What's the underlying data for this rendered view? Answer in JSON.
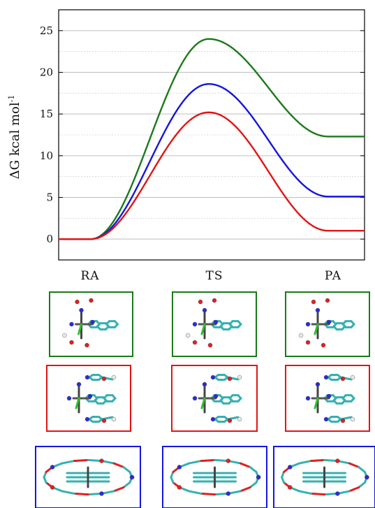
{
  "chart_data": {
    "type": "line",
    "title": "",
    "ylabel": "ΔG kcal mol",
    "ylabel_superscript": "-1",
    "xlabel": "",
    "ylim": [
      -2.5,
      27.5
    ],
    "yticks": [
      0,
      5,
      10,
      15,
      20,
      25
    ],
    "minor_gridlines": true,
    "reaction_coordinate": [
      "RA",
      "TS",
      "PA"
    ],
    "series": [
      {
        "color": "#1a7a1a",
        "values": {
          "RA": 0,
          "TS": 24.0,
          "PA": 12.3
        }
      },
      {
        "color": "#1515e0",
        "values": {
          "RA": 0,
          "TS": 18.6,
          "PA": 5.1
        }
      },
      {
        "color": "#e01515",
        "values": {
          "RA": 0,
          "TS": 15.2,
          "PA": 1.0
        }
      }
    ]
  },
  "structures": [
    {
      "row": "green",
      "color": "#1a7a1a",
      "panels": [
        "RA",
        "TS",
        "PA"
      ]
    },
    {
      "row": "red",
      "color": "#e01515",
      "panels": [
        "RA",
        "TS",
        "PA"
      ]
    },
    {
      "row": "blue",
      "color": "#1515e0",
      "panels": [
        "RA",
        "TS",
        "PA"
      ]
    }
  ]
}
